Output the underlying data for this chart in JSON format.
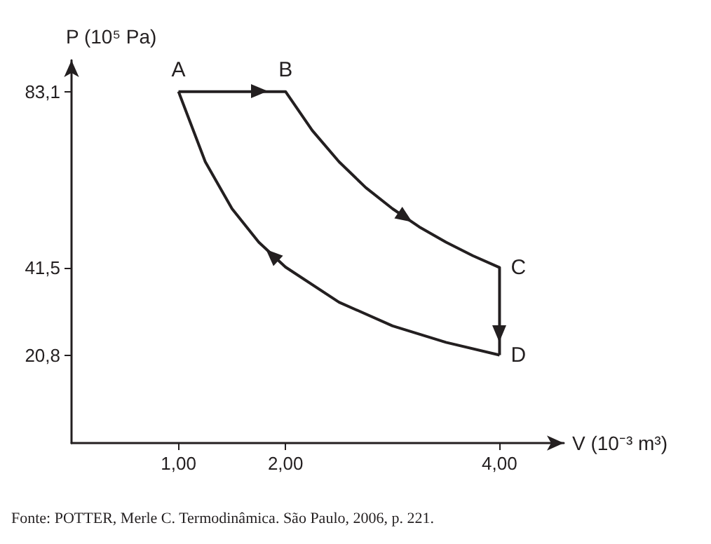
{
  "chart_data": {
    "type": "line",
    "xlabel": "V (10⁻³ m³)",
    "ylabel": "P (10⁵ Pa)",
    "series": [
      {
        "color": "#231f20",
        "x": [
          1,
          1.5,
          2,
          2.25,
          2.5,
          2.75,
          3,
          3.25,
          3.5,
          3.75,
          4,
          4,
          4
        ],
        "values": [
          83.1,
          83.1,
          83.1,
          73.9,
          66.5,
          60.4,
          55.4,
          51.1,
          47.5,
          44.3,
          41.5,
          31,
          20.8
        ]
      },
      {
        "color": "#231f20",
        "x": [
          4,
          3.5,
          3,
          2.5,
          2,
          1.75,
          1.5,
          1.25,
          1
        ],
        "values": [
          20.8,
          23.8,
          27.7,
          33.3,
          41.6,
          47.5,
          55.4,
          66.5,
          83.1
        ]
      }
    ],
    "xlim": [
      0,
      4.6
    ],
    "ylim": [
      0,
      90.5
    ],
    "xticks": [
      {
        "value": 1,
        "label": "1,00"
      },
      {
        "value": 2,
        "label": "2,00"
      },
      {
        "value": 4,
        "label": "4,00"
      }
    ],
    "yticks": [
      {
        "value": 20.8,
        "label": "20,8"
      },
      {
        "value": 41.5,
        "label": "41,5"
      },
      {
        "value": 83.1,
        "label": "83,1"
      }
    ],
    "marker": "none",
    "line_style": "solid",
    "grid": false,
    "annotations": [
      {
        "text": "A",
        "x": 1,
        "y": 83.1
      },
      {
        "text": "B",
        "x": 2,
        "y": 83.1
      },
      {
        "text": "C",
        "x": 4,
        "y": 41.5
      },
      {
        "text": "D",
        "x": 4,
        "y": 20.8
      },
      "Fonte: POTTER, Merle C. Termodinâmica. São Paulo, 2006, p. 221."
    ]
  }
}
